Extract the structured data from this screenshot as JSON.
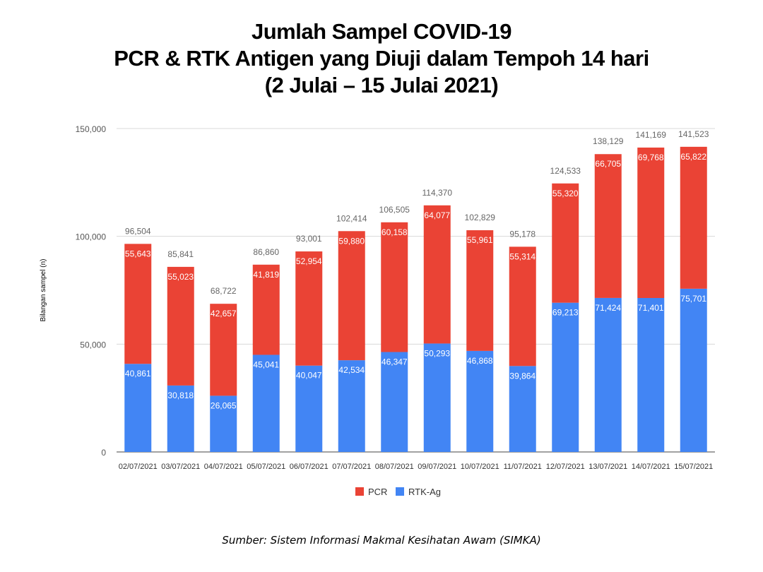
{
  "title_lines": [
    "Jumlah Sampel COVID-19",
    "PCR & RTK Antigen yang Diuji dalam Tempoh 14 hari",
    "(2 Julai – 15 Julai 2021)"
  ],
  "source": "Sumber: Sistem Informasi Makmal Kesihatan Awam (SIMKA)",
  "chart_data": {
    "type": "bar",
    "stacked": true,
    "title": "Jumlah Sampel COVID-19 PCR & RTK Antigen yang Diuji dalam Tempoh 14 hari (2 Julai – 15 Julai 2021)",
    "xlabel": "",
    "ylabel": "Bilangan sampel (n)",
    "ylim": [
      0,
      150000
    ],
    "yticks": [
      "0",
      "50,000",
      "100,000",
      "150,000"
    ],
    "grid": true,
    "legend": "bottom",
    "categories": [
      "02/07/2021",
      "03/07/2021",
      "04/07/2021",
      "05/07/2021",
      "06/07/2021",
      "07/07/2021",
      "08/07/2021",
      "09/07/2021",
      "10/07/2021",
      "11/07/2021",
      "12/07/2021",
      "13/07/2021",
      "14/07/2021",
      "15/07/2021"
    ],
    "series": [
      {
        "name": "RTK-Ag",
        "color": "#4285F4",
        "values": [
          40861,
          30818,
          26065,
          45041,
          40047,
          42534,
          46347,
          50293,
          46868,
          39864,
          69213,
          71424,
          71401,
          75701
        ],
        "labels": [
          "40,861",
          "30,818",
          "26,065",
          "45,041",
          "40,047",
          "42,534",
          "46,347",
          "50,293",
          "46,868",
          "39,864",
          "69,213",
          "71,424",
          "71,401",
          "75,701"
        ]
      },
      {
        "name": "PCR",
        "color": "#EA4335",
        "values": [
          55643,
          55023,
          42657,
          41819,
          52954,
          59880,
          60158,
          64077,
          55961,
          55314,
          55320,
          66705,
          69768,
          65822
        ],
        "labels": [
          "55,643",
          "55,023",
          "42,657",
          "41,819",
          "52,954",
          "59,880",
          "60,158",
          "64,077",
          "55,961",
          "55,314",
          "55,320",
          "66,705",
          "69,768",
          "65,822"
        ]
      }
    ],
    "totals": [
      96504,
      85841,
      68722,
      86860,
      93001,
      102414,
      106505,
      114370,
      102829,
      95178,
      124533,
      138129,
      141169,
      141523
    ],
    "total_labels": [
      "96,504",
      "85,841",
      "68,722",
      "86,860",
      "93,001",
      "102,414",
      "106,505",
      "114,370",
      "102,829",
      "95,178",
      "124,533",
      "138,129",
      "141,169",
      "141,523"
    ],
    "legend_order": [
      "PCR",
      "RTK-Ag"
    ]
  }
}
